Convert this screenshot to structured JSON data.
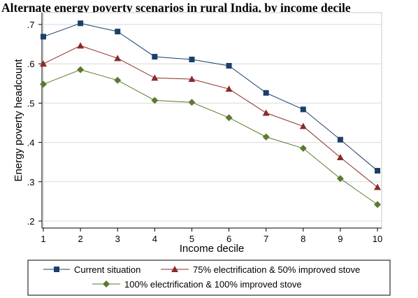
{
  "chart_data": {
    "type": "line",
    "title": "Alternate energy poverty scenarios in rural India, by income decile",
    "xlabel": "Income decile",
    "ylabel": "Energy poverty headcount",
    "x": [
      1,
      2,
      3,
      4,
      5,
      6,
      7,
      8,
      9,
      10
    ],
    "x_tick_labels": [
      "1",
      "2",
      "3",
      "4",
      "5",
      "6",
      "7",
      "8",
      "9",
      "10"
    ],
    "y_ticks": [
      0.2,
      0.3,
      0.4,
      0.5,
      0.6,
      0.7
    ],
    "y_tick_labels": [
      ".2",
      ".3",
      ".4",
      ".5",
      ".6",
      ".7"
    ],
    "xlim": [
      1,
      10
    ],
    "ylim": [
      0.2,
      0.7
    ],
    "grid": "horizontal",
    "legend_position": "bottom",
    "series": [
      {
        "name": "Current situation",
        "values": [
          0.669,
          0.703,
          0.682,
          0.618,
          0.611,
          0.595,
          0.526,
          0.484,
          0.407,
          0.328
        ],
        "color": "#1a3f6b",
        "marker": "square"
      },
      {
        "name": "75% electrification & 50% improved stove",
        "values": [
          0.6,
          0.646,
          0.614,
          0.564,
          0.561,
          0.536,
          0.475,
          0.441,
          0.362,
          0.286
        ],
        "color": "#8b2a2a",
        "marker": "triangle"
      },
      {
        "name": "100% electrification & 100% improved stove",
        "values": [
          0.548,
          0.585,
          0.558,
          0.507,
          0.502,
          0.463,
          0.414,
          0.385,
          0.308,
          0.242
        ],
        "color": "#5b7a2e",
        "marker": "diamond"
      }
    ]
  }
}
